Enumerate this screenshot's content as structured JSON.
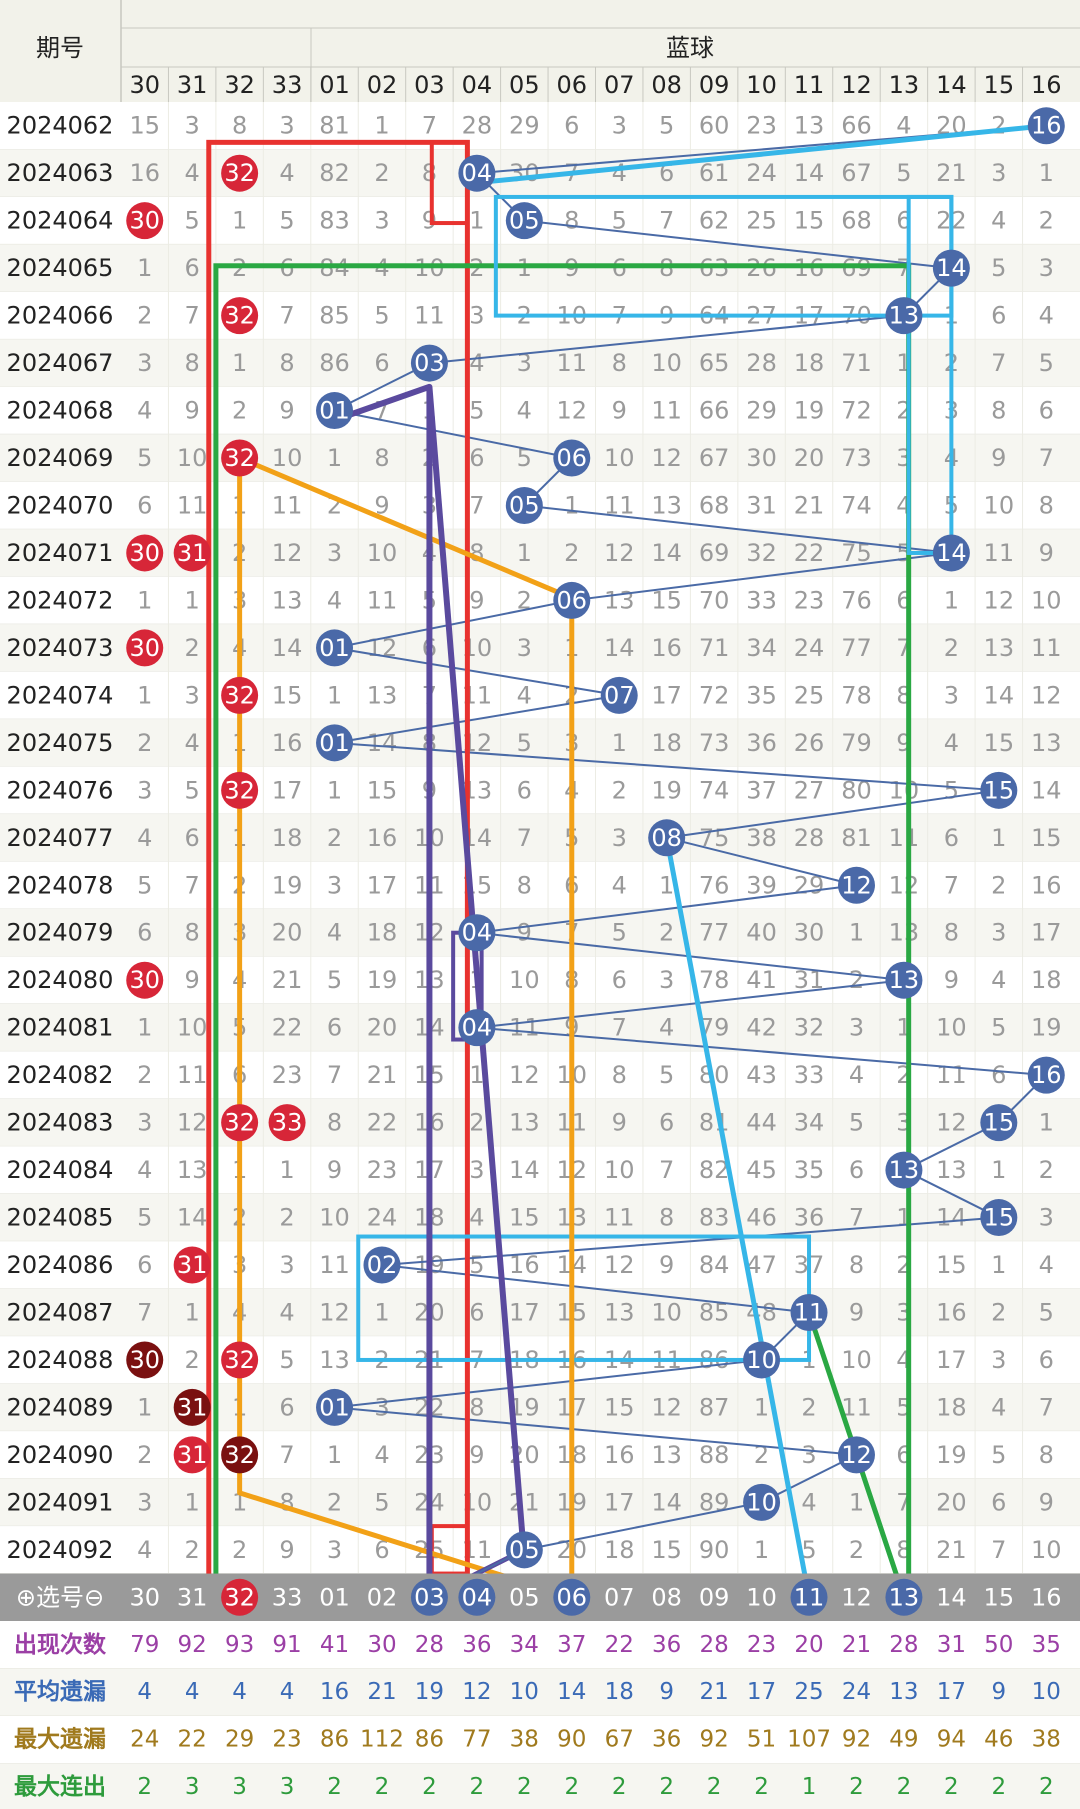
{
  "header": {
    "period_label": "期号",
    "section_label": "蓝球",
    "select_label": "⊕选号⊖"
  },
  "chart_data": {
    "type": "table",
    "columns": [
      "30",
      "31",
      "32",
      "33",
      "01",
      "02",
      "03",
      "04",
      "05",
      "06",
      "07",
      "08",
      "09",
      "10",
      "11",
      "12",
      "13",
      "14",
      "15",
      "16"
    ],
    "rows": [
      {
        "period": "2024062",
        "cells": [
          "15",
          "3",
          "8",
          "3",
          "81",
          "1",
          "7",
          "28",
          "29",
          "6",
          "3",
          "5",
          "60",
          "23",
          "13",
          "66",
          "4",
          "20",
          "2",
          "16"
        ]
      },
      {
        "period": "2024063",
        "cells": [
          "16",
          "4",
          "32",
          "4",
          "82",
          "2",
          "8",
          "04",
          "30",
          "7",
          "4",
          "6",
          "61",
          "24",
          "14",
          "67",
          "5",
          "21",
          "3",
          "1"
        ]
      },
      {
        "period": "2024064",
        "cells": [
          "30",
          "5",
          "1",
          "5",
          "83",
          "3",
          "9",
          "1",
          "05",
          "8",
          "5",
          "7",
          "62",
          "25",
          "15",
          "68",
          "6",
          "22",
          "4",
          "2"
        ]
      },
      {
        "period": "2024065",
        "cells": [
          "1",
          "6",
          "2",
          "6",
          "84",
          "4",
          "10",
          "2",
          "1",
          "9",
          "6",
          "8",
          "63",
          "26",
          "16",
          "69",
          "7",
          "14",
          "5",
          "3"
        ]
      },
      {
        "period": "2024066",
        "cells": [
          "2",
          "7",
          "32",
          "7",
          "85",
          "5",
          "11",
          "3",
          "2",
          "10",
          "7",
          "9",
          "64",
          "27",
          "17",
          "70",
          "13",
          "1",
          "6",
          "4"
        ]
      },
      {
        "period": "2024067",
        "cells": [
          "3",
          "8",
          "1",
          "8",
          "86",
          "6",
          "03",
          "4",
          "3",
          "11",
          "8",
          "10",
          "65",
          "28",
          "18",
          "71",
          "1",
          "2",
          "7",
          "5"
        ]
      },
      {
        "period": "2024068",
        "cells": [
          "4",
          "9",
          "2",
          "9",
          "01",
          "7",
          "1",
          "5",
          "4",
          "12",
          "9",
          "11",
          "66",
          "29",
          "19",
          "72",
          "2",
          "3",
          "8",
          "6"
        ]
      },
      {
        "period": "2024069",
        "cells": [
          "5",
          "10",
          "32",
          "10",
          "1",
          "8",
          "2",
          "6",
          "5",
          "06",
          "10",
          "12",
          "67",
          "30",
          "20",
          "73",
          "3",
          "4",
          "9",
          "7"
        ]
      },
      {
        "period": "2024070",
        "cells": [
          "6",
          "11",
          "1",
          "11",
          "2",
          "9",
          "3",
          "7",
          "05",
          "1",
          "11",
          "13",
          "68",
          "31",
          "21",
          "74",
          "4",
          "5",
          "10",
          "8"
        ]
      },
      {
        "period": "2024071",
        "cells": [
          "30",
          "31",
          "2",
          "12",
          "3",
          "10",
          "4",
          "8",
          "1",
          "2",
          "12",
          "14",
          "69",
          "32",
          "22",
          "75",
          "5",
          "14",
          "11",
          "9"
        ]
      },
      {
        "period": "2024072",
        "cells": [
          "1",
          "1",
          "3",
          "13",
          "4",
          "11",
          "5",
          "9",
          "2",
          "06",
          "13",
          "15",
          "70",
          "33",
          "23",
          "76",
          "6",
          "1",
          "12",
          "10"
        ]
      },
      {
        "period": "2024073",
        "cells": [
          "30",
          "2",
          "4",
          "14",
          "01",
          "12",
          "6",
          "10",
          "3",
          "1",
          "14",
          "16",
          "71",
          "34",
          "24",
          "77",
          "7",
          "2",
          "13",
          "11"
        ]
      },
      {
        "period": "2024074",
        "cells": [
          "1",
          "3",
          "32",
          "15",
          "1",
          "13",
          "7",
          "11",
          "4",
          "2",
          "07",
          "17",
          "72",
          "35",
          "25",
          "78",
          "8",
          "3",
          "14",
          "12"
        ]
      },
      {
        "period": "2024075",
        "cells": [
          "2",
          "4",
          "1",
          "16",
          "01",
          "14",
          "8",
          "12",
          "5",
          "3",
          "1",
          "18",
          "73",
          "36",
          "26",
          "79",
          "9",
          "4",
          "15",
          "13"
        ]
      },
      {
        "period": "2024076",
        "cells": [
          "3",
          "5",
          "32",
          "17",
          "1",
          "15",
          "9",
          "13",
          "6",
          "4",
          "2",
          "19",
          "74",
          "37",
          "27",
          "80",
          "10",
          "5",
          "15",
          "14"
        ]
      },
      {
        "period": "2024077",
        "cells": [
          "4",
          "6",
          "1",
          "18",
          "2",
          "16",
          "10",
          "14",
          "7",
          "5",
          "3",
          "08",
          "75",
          "38",
          "28",
          "81",
          "11",
          "6",
          "1",
          "15"
        ]
      },
      {
        "period": "2024078",
        "cells": [
          "5",
          "7",
          "2",
          "19",
          "3",
          "17",
          "11",
          "15",
          "8",
          "6",
          "4",
          "1",
          "76",
          "39",
          "29",
          "12",
          "12",
          "7",
          "2",
          "16"
        ]
      },
      {
        "period": "2024079",
        "cells": [
          "6",
          "8",
          "3",
          "20",
          "4",
          "18",
          "12",
          "04",
          "9",
          "7",
          "5",
          "2",
          "77",
          "40",
          "30",
          "1",
          "13",
          "8",
          "3",
          "17"
        ]
      },
      {
        "period": "2024080",
        "cells": [
          "30",
          "9",
          "4",
          "21",
          "5",
          "19",
          "13",
          "1",
          "10",
          "8",
          "6",
          "3",
          "78",
          "41",
          "31",
          "2",
          "13",
          "9",
          "4",
          "18"
        ]
      },
      {
        "period": "2024081",
        "cells": [
          "1",
          "10",
          "5",
          "22",
          "6",
          "20",
          "14",
          "04",
          "11",
          "9",
          "7",
          "4",
          "79",
          "42",
          "32",
          "3",
          "1",
          "10",
          "5",
          "19"
        ]
      },
      {
        "period": "2024082",
        "cells": [
          "2",
          "11",
          "6",
          "23",
          "7",
          "21",
          "15",
          "1",
          "12",
          "10",
          "8",
          "5",
          "80",
          "43",
          "33",
          "4",
          "2",
          "11",
          "6",
          "16"
        ]
      },
      {
        "period": "2024083",
        "cells": [
          "3",
          "12",
          "32",
          "33",
          "8",
          "22",
          "16",
          "2",
          "13",
          "11",
          "9",
          "6",
          "81",
          "44",
          "34",
          "5",
          "3",
          "12",
          "15",
          "1"
        ]
      },
      {
        "period": "2024084",
        "cells": [
          "4",
          "13",
          "1",
          "1",
          "9",
          "23",
          "17",
          "3",
          "14",
          "12",
          "10",
          "7",
          "82",
          "45",
          "35",
          "6",
          "13",
          "13",
          "1",
          "2"
        ]
      },
      {
        "period": "2024085",
        "cells": [
          "5",
          "14",
          "2",
          "2",
          "10",
          "24",
          "18",
          "4",
          "15",
          "13",
          "11",
          "8",
          "83",
          "46",
          "36",
          "7",
          "1",
          "14",
          "15",
          "3"
        ]
      },
      {
        "period": "2024086",
        "cells": [
          "6",
          "31",
          "3",
          "3",
          "11",
          "02",
          "19",
          "5",
          "16",
          "14",
          "12",
          "9",
          "84",
          "47",
          "37",
          "8",
          "2",
          "15",
          "1",
          "4"
        ]
      },
      {
        "period": "2024087",
        "cells": [
          "7",
          "1",
          "4",
          "4",
          "12",
          "1",
          "20",
          "6",
          "17",
          "15",
          "13",
          "10",
          "85",
          "48",
          "11",
          "9",
          "3",
          "16",
          "2",
          "5"
        ]
      },
      {
        "period": "2024088",
        "cells": [
          "30",
          "2",
          "32",
          "5",
          "13",
          "2",
          "21",
          "7",
          "18",
          "16",
          "14",
          "11",
          "86",
          "10",
          "1",
          "10",
          "4",
          "17",
          "3",
          "6"
        ]
      },
      {
        "period": "2024089",
        "cells": [
          "1",
          "31",
          "1",
          "6",
          "01",
          "3",
          "22",
          "8",
          "19",
          "17",
          "15",
          "12",
          "87",
          "1",
          "2",
          "11",
          "5",
          "18",
          "4",
          "7"
        ]
      },
      {
        "period": "2024090",
        "cells": [
          "2",
          "31",
          "32",
          "7",
          "1",
          "4",
          "23",
          "9",
          "20",
          "18",
          "16",
          "13",
          "88",
          "2",
          "3",
          "12",
          "6",
          "19",
          "5",
          "8"
        ]
      },
      {
        "period": "2024091",
        "cells": [
          "3",
          "1",
          "1",
          "8",
          "2",
          "5",
          "24",
          "10",
          "21",
          "19",
          "17",
          "14",
          "89",
          "10",
          "4",
          "1",
          "7",
          "20",
          "6",
          "9"
        ]
      },
      {
        "period": "2024092",
        "cells": [
          "4",
          "2",
          "2",
          "9",
          "3",
          "6",
          "25",
          "11",
          "05",
          "20",
          "18",
          "15",
          "90",
          "1",
          "5",
          "2",
          "8",
          "21",
          "7",
          "10"
        ]
      }
    ],
    "balls": [
      {
        "row": 0,
        "col": 19,
        "type": "blue"
      },
      {
        "row": 1,
        "col": 2,
        "type": "red"
      },
      {
        "row": 1,
        "col": 7,
        "type": "blue"
      },
      {
        "row": 2,
        "col": 0,
        "type": "red"
      },
      {
        "row": 2,
        "col": 8,
        "type": "blue"
      },
      {
        "row": 3,
        "col": 17,
        "type": "blue"
      },
      {
        "row": 4,
        "col": 2,
        "type": "red"
      },
      {
        "row": 4,
        "col": 16,
        "type": "blue"
      },
      {
        "row": 5,
        "col": 6,
        "type": "blue"
      },
      {
        "row": 6,
        "col": 4,
        "type": "blue"
      },
      {
        "row": 7,
        "col": 2,
        "type": "red"
      },
      {
        "row": 7,
        "col": 9,
        "type": "blue"
      },
      {
        "row": 8,
        "col": 8,
        "type": "blue"
      },
      {
        "row": 9,
        "col": 0,
        "type": "red"
      },
      {
        "row": 9,
        "col": 1,
        "type": "red"
      },
      {
        "row": 9,
        "col": 17,
        "type": "blue"
      },
      {
        "row": 10,
        "col": 9,
        "type": "blue"
      },
      {
        "row": 11,
        "col": 0,
        "type": "red"
      },
      {
        "row": 11,
        "col": 4,
        "type": "blue"
      },
      {
        "row": 12,
        "col": 2,
        "type": "red"
      },
      {
        "row": 12,
        "col": 10,
        "type": "blue"
      },
      {
        "row": 13,
        "col": 4,
        "type": "blue"
      },
      {
        "row": 14,
        "col": 2,
        "type": "red"
      },
      {
        "row": 14,
        "col": 18,
        "type": "blue"
      },
      {
        "row": 15,
        "col": 11,
        "type": "blue"
      },
      {
        "row": 16,
        "col": 15,
        "type": "blue"
      },
      {
        "row": 17,
        "col": 7,
        "type": "blue"
      },
      {
        "row": 18,
        "col": 0,
        "type": "red"
      },
      {
        "row": 18,
        "col": 16,
        "type": "blue"
      },
      {
        "row": 19,
        "col": 7,
        "type": "blue"
      },
      {
        "row": 20,
        "col": 19,
        "type": "blue"
      },
      {
        "row": 21,
        "col": 2,
        "type": "red"
      },
      {
        "row": 21,
        "col": 3,
        "type": "red"
      },
      {
        "row": 21,
        "col": 18,
        "type": "blue"
      },
      {
        "row": 22,
        "col": 16,
        "type": "blue"
      },
      {
        "row": 23,
        "col": 18,
        "type": "blue"
      },
      {
        "row": 24,
        "col": 1,
        "type": "red"
      },
      {
        "row": 24,
        "col": 5,
        "type": "blue"
      },
      {
        "row": 25,
        "col": 14,
        "type": "blue"
      },
      {
        "row": 26,
        "col": 0,
        "type": "darkred"
      },
      {
        "row": 26,
        "col": 2,
        "type": "red"
      },
      {
        "row": 26,
        "col": 13,
        "type": "blue"
      },
      {
        "row": 27,
        "col": 1,
        "type": "darkred"
      },
      {
        "row": 27,
        "col": 4,
        "type": "blue"
      },
      {
        "row": 28,
        "col": 1,
        "type": "red"
      },
      {
        "row": 28,
        "col": 2,
        "type": "darkred"
      },
      {
        "row": 28,
        "col": 15,
        "type": "blue"
      },
      {
        "row": 29,
        "col": 13,
        "type": "blue"
      },
      {
        "row": 30,
        "col": 8,
        "type": "blue"
      }
    ],
    "select_row": {
      "cells": [
        "30",
        "31",
        "32",
        "33",
        "01",
        "02",
        "03",
        "04",
        "05",
        "06",
        "07",
        "08",
        "09",
        "10",
        "11",
        "12",
        "13",
        "14",
        "15",
        "16"
      ],
      "highlighted": [
        {
          "col": 2,
          "type": "red"
        },
        {
          "col": 6,
          "type": "blue"
        },
        {
          "col": 7,
          "type": "blue"
        },
        {
          "col": 9,
          "type": "blue"
        },
        {
          "col": 14,
          "type": "blue"
        },
        {
          "col": 16,
          "type": "blue"
        }
      ]
    },
    "stats": [
      {
        "label": "出现次数",
        "color": "#9b3fa5",
        "values": [
          "79",
          "92",
          "93",
          "91",
          "41",
          "30",
          "28",
          "36",
          "34",
          "37",
          "22",
          "36",
          "28",
          "23",
          "20",
          "21",
          "28",
          "31",
          "50",
          "35"
        ]
      },
      {
        "label": "平均遗漏",
        "color": "#3a6ab6",
        "values": [
          "4",
          "4",
          "4",
          "4",
          "16",
          "21",
          "19",
          "12",
          "10",
          "14",
          "18",
          "9",
          "21",
          "17",
          "25",
          "24",
          "13",
          "17",
          "9",
          "10"
        ]
      },
      {
        "label": "最大遗漏",
        "color": "#a07a1e",
        "values": [
          "24",
          "22",
          "29",
          "23",
          "86",
          "112",
          "86",
          "77",
          "38",
          "90",
          "67",
          "36",
          "92",
          "51",
          "107",
          "92",
          "49",
          "94",
          "46",
          "38"
        ]
      },
      {
        "label": "最大连出",
        "color": "#2e9b3c",
        "values": [
          "2",
          "3",
          "3",
          "3",
          "2",
          "2",
          "2",
          "2",
          "2",
          "2",
          "2",
          "2",
          "2",
          "2",
          "1",
          "2",
          "2",
          "2",
          "2",
          "2"
        ]
      }
    ]
  }
}
